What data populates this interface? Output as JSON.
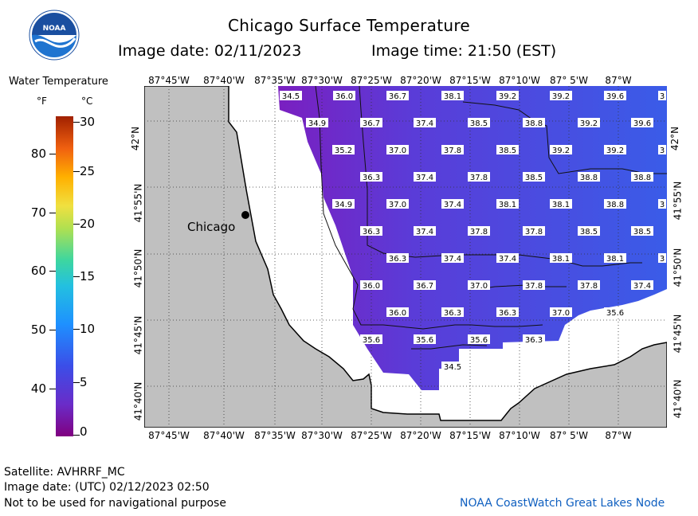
{
  "header": {
    "title": "Chicago Surface Temperature",
    "image_date": "Image date: 02/11/2023",
    "image_time": "Image time: 21:50 (EST)"
  },
  "logo": {
    "text": "NOAA",
    "icon": "noaa-logo-icon"
  },
  "legend": {
    "title": "Water Temperature",
    "unit_f": "°F",
    "unit_c": "°C",
    "f_ticks": [
      "80",
      "70",
      "60",
      "50",
      "40"
    ],
    "c_ticks": [
      "30",
      "25",
      "20",
      "15",
      "10",
      "5",
      "0"
    ]
  },
  "map": {
    "city_label": "Chicago",
    "lon_labels": [
      "87°45'W",
      "87°40'W",
      "87°35'W",
      "87°30'W",
      "87°25'W",
      "87°20'W",
      "87°15'W",
      "87°10'W",
      "87° 5'W",
      "87°W"
    ],
    "lat_labels": [
      "42°N",
      "41°55'N",
      "41°50'N",
      "41°45'N",
      "41°40'N"
    ],
    "temperature_rows": [
      [
        "34.5",
        "36.0",
        "36.7",
        "38.1",
        "39.2",
        "39.2",
        "39.6",
        "3"
      ],
      [
        "34.9",
        "36.7",
        "37.4",
        "38.5",
        "38.8",
        "39.2",
        "39.6"
      ],
      [
        "35.2",
        "37.0",
        "37.8",
        "38.5",
        "39.2",
        "39.2",
        "3"
      ],
      [
        "36.3",
        "37.4",
        "37.8",
        "38.5",
        "38.8",
        "38.8"
      ],
      [
        "34.9",
        "37.0",
        "37.4",
        "38.1",
        "38.1",
        "38.8",
        "3"
      ],
      [
        "36.3",
        "37.4",
        "37.8",
        "37.8",
        "38.5",
        "38.5"
      ],
      [
        "36.3",
        "37.4",
        "37.4",
        "38.1",
        "38.1",
        "3"
      ],
      [
        "36.0",
        "36.7",
        "37.0",
        "37.8",
        "37.8",
        "37.4"
      ],
      [
        "36.0",
        "36.3",
        "36.3",
        "37.0",
        "35.6"
      ],
      [
        "35.6",
        "35.6",
        "35.6",
        "36.3"
      ],
      [
        "34.5"
      ]
    ],
    "colors": {
      "land": "#c0c0c0",
      "water_cold": "#7a1fc0",
      "water_mid": "#5a3cd8",
      "water_warm": "#3a5ce8",
      "no_data": "#ffffff"
    }
  },
  "footer": {
    "satellite": "Satellite: AVHRRF_MC",
    "utc_date": "Image date: (UTC) 02/12/2023  02:50",
    "nav_warning": "Not to be used for navigational purpose",
    "node": "NOAA CoastWatch Great Lakes Node"
  }
}
